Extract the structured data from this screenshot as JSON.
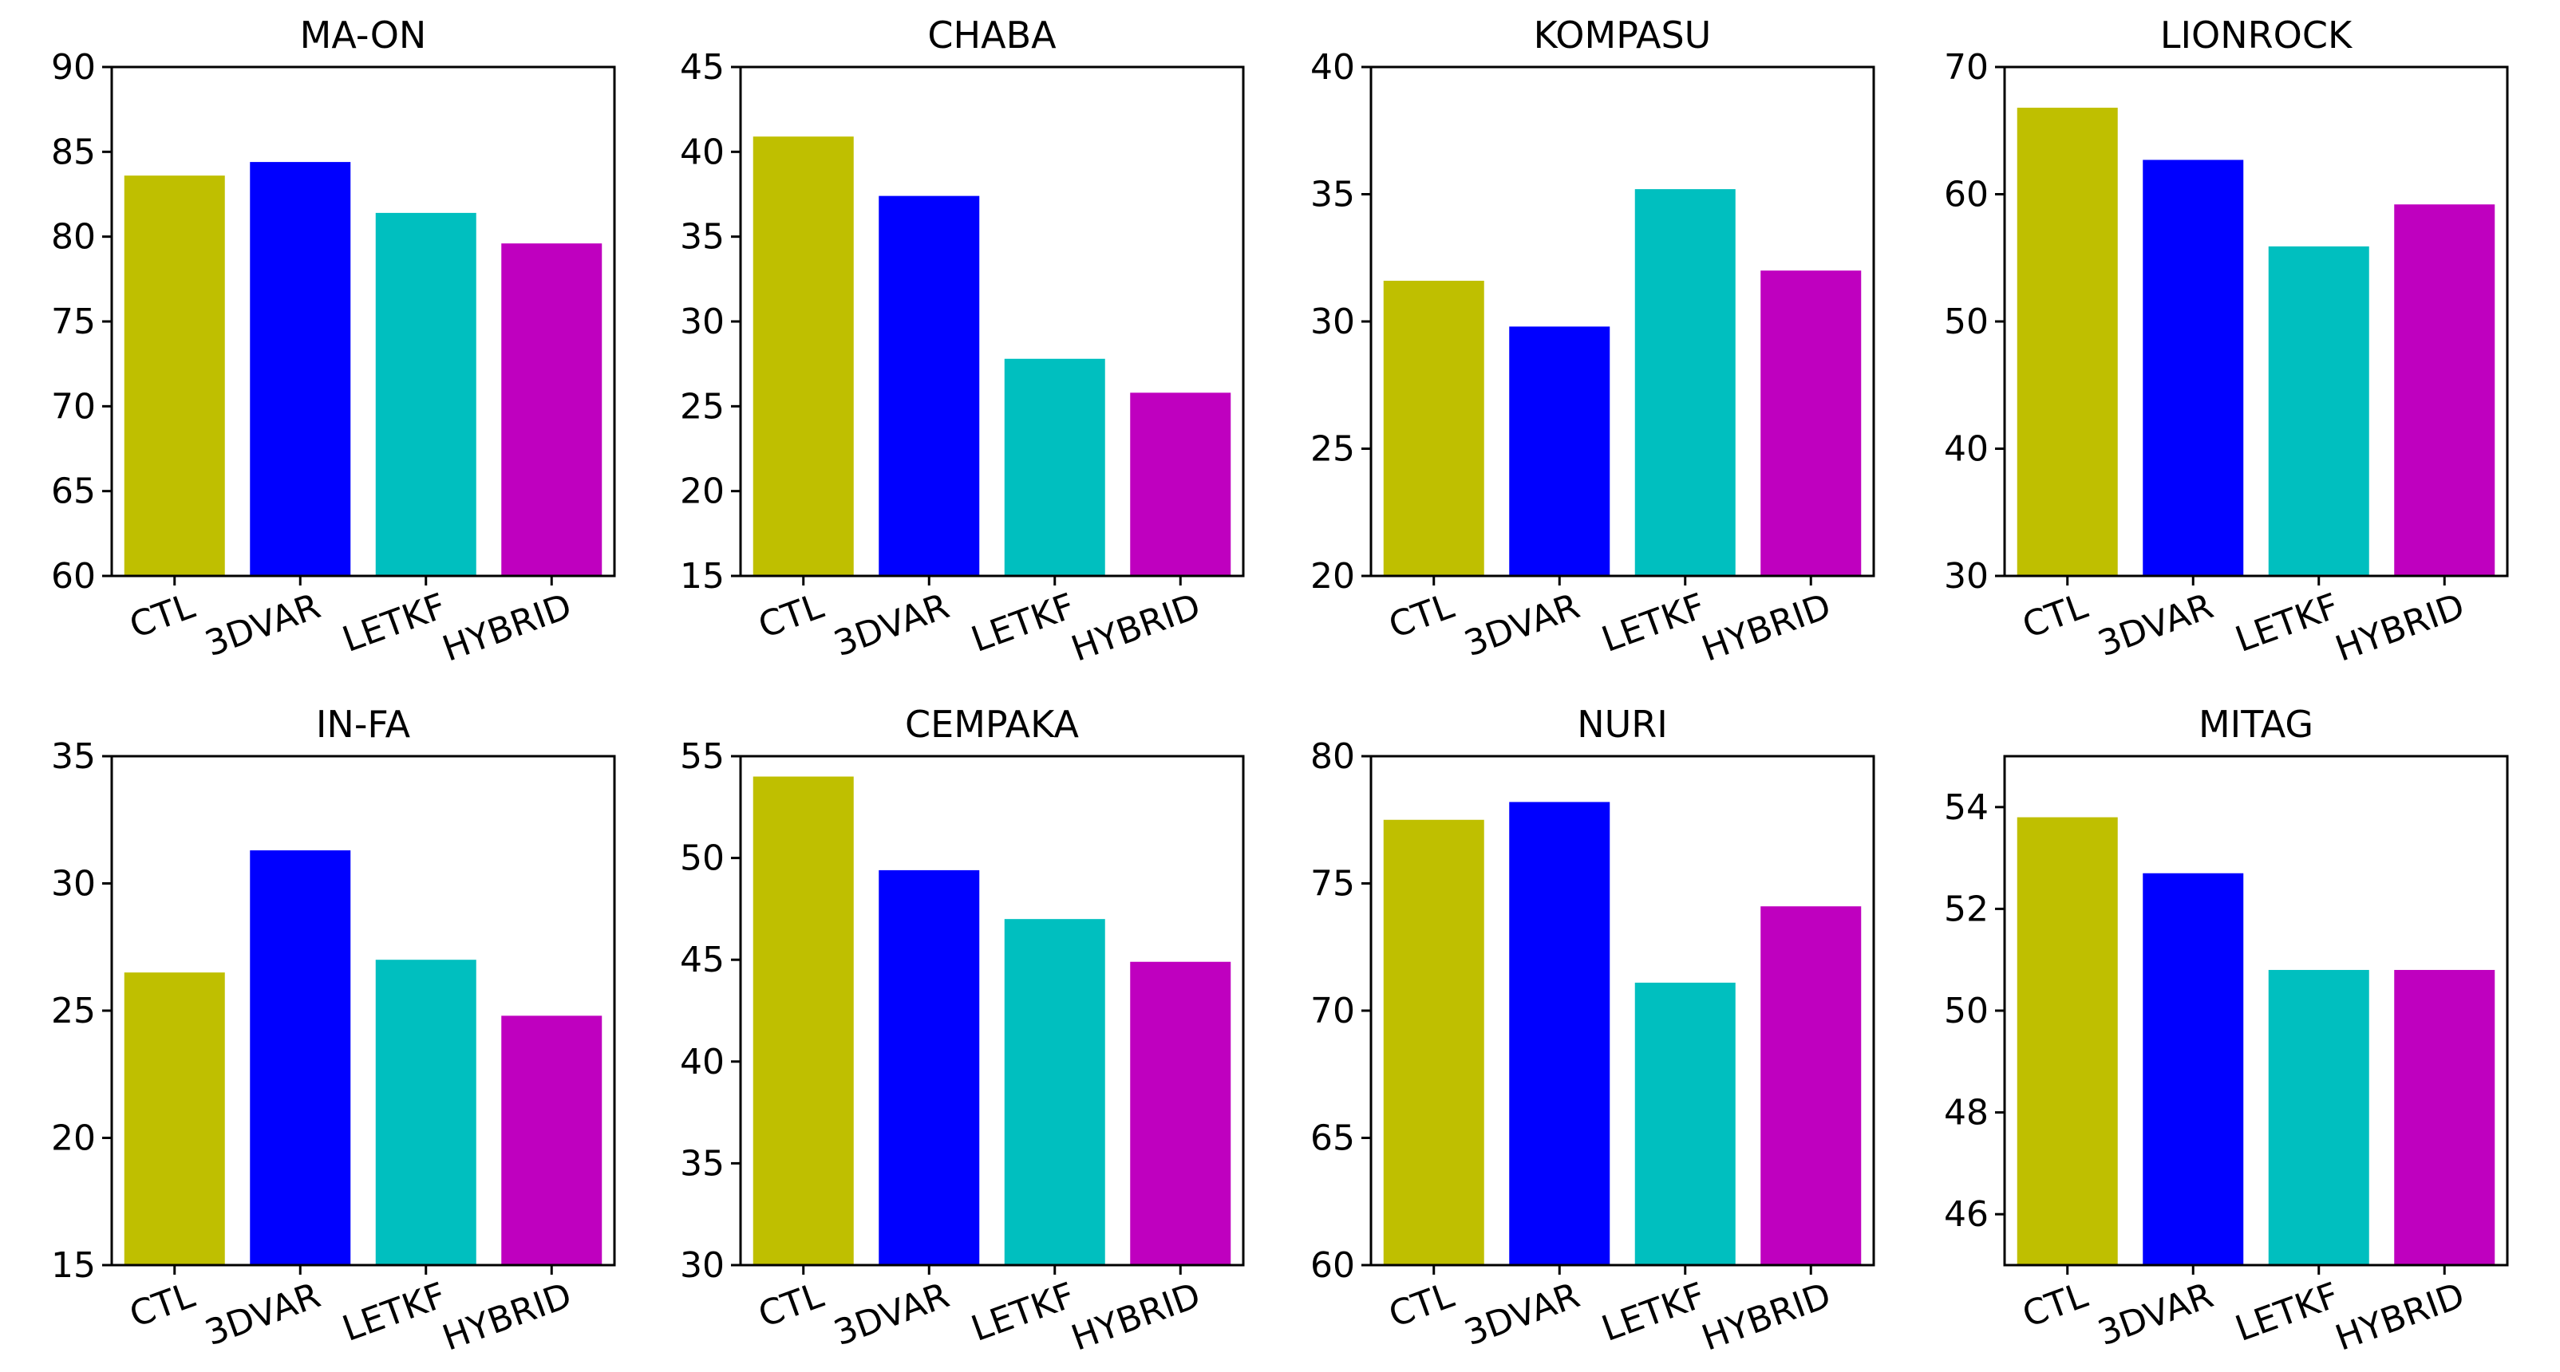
{
  "colors": {
    "CTL": "#BFBF00",
    "3DVAR": "#0000FF",
    "LETKF": "#00BFBF",
    "HYBRID": "#BF00BF"
  },
  "chart_data": [
    {
      "type": "bar",
      "title": "MA-ON",
      "categories": [
        "CTL",
        "3DVAR",
        "LETKF",
        "HYBRID"
      ],
      "values": [
        83.6,
        84.4,
        81.4,
        79.6
      ],
      "ylim": [
        60,
        90
      ],
      "yticks": [
        60,
        65,
        70,
        75,
        80,
        85,
        90
      ],
      "xlabel": "",
      "ylabel": ""
    },
    {
      "type": "bar",
      "title": "CHABA",
      "categories": [
        "CTL",
        "3DVAR",
        "LETKF",
        "HYBRID"
      ],
      "values": [
        40.9,
        37.4,
        27.8,
        25.8
      ],
      "ylim": [
        15,
        45
      ],
      "yticks": [
        15,
        20,
        25,
        30,
        35,
        40,
        45
      ],
      "xlabel": "",
      "ylabel": ""
    },
    {
      "type": "bar",
      "title": "KOMPASU",
      "categories": [
        "CTL",
        "3DVAR",
        "LETKF",
        "HYBRID"
      ],
      "values": [
        31.6,
        29.8,
        35.2,
        32.0
      ],
      "ylim": [
        20,
        40
      ],
      "yticks": [
        20,
        25,
        30,
        35,
        40
      ],
      "xlabel": "",
      "ylabel": ""
    },
    {
      "type": "bar",
      "title": "LIONROCK",
      "categories": [
        "CTL",
        "3DVAR",
        "LETKF",
        "HYBRID"
      ],
      "values": [
        66.8,
        62.7,
        55.9,
        59.2
      ],
      "ylim": [
        30,
        70
      ],
      "yticks": [
        30,
        40,
        50,
        60,
        70
      ],
      "xlabel": "",
      "ylabel": ""
    },
    {
      "type": "bar",
      "title": "IN-FA",
      "categories": [
        "CTL",
        "3DVAR",
        "LETKF",
        "HYBRID"
      ],
      "values": [
        26.5,
        31.3,
        27.0,
        24.8
      ],
      "ylim": [
        15,
        35
      ],
      "yticks": [
        15,
        20,
        25,
        30,
        35
      ],
      "xlabel": "",
      "ylabel": ""
    },
    {
      "type": "bar",
      "title": "CEMPAKA",
      "categories": [
        "CTL",
        "3DVAR",
        "LETKF",
        "HYBRID"
      ],
      "values": [
        54.0,
        49.4,
        47.0,
        44.9
      ],
      "ylim": [
        30,
        55
      ],
      "yticks": [
        30,
        35,
        40,
        45,
        50,
        55
      ],
      "xlabel": "",
      "ylabel": ""
    },
    {
      "type": "bar",
      "title": "NURI",
      "categories": [
        "CTL",
        "3DVAR",
        "LETKF",
        "HYBRID"
      ],
      "values": [
        77.5,
        78.2,
        71.1,
        74.1
      ],
      "ylim": [
        60,
        80
      ],
      "yticks": [
        60,
        65,
        70,
        75,
        80
      ],
      "xlabel": "",
      "ylabel": ""
    },
    {
      "type": "bar",
      "title": "MITAG",
      "categories": [
        "CTL",
        "3DVAR",
        "LETKF",
        "HYBRID"
      ],
      "values": [
        53.8,
        52.7,
        50.8,
        50.8
      ],
      "ylim": [
        45,
        55
      ],
      "yticks": [
        46,
        48,
        50,
        52,
        54
      ],
      "xlabel": "",
      "ylabel": ""
    }
  ]
}
